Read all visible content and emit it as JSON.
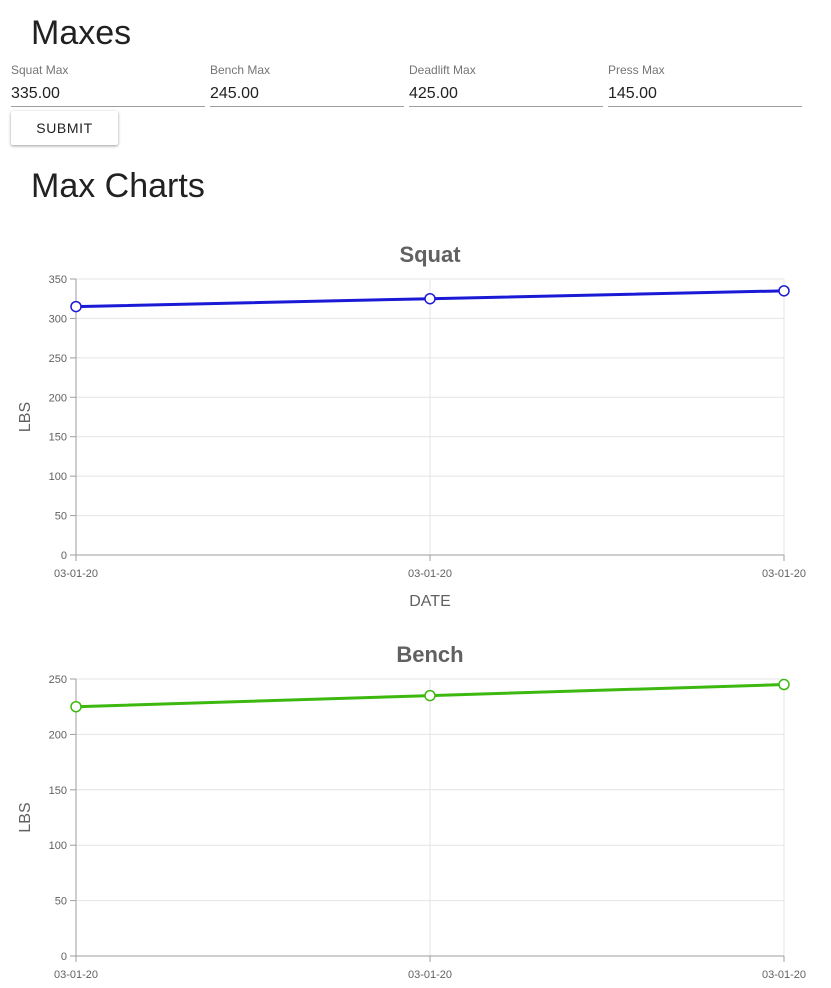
{
  "maxes": {
    "title": "Maxes",
    "fields": [
      {
        "label": "Squat Max",
        "value": "335.00"
      },
      {
        "label": "Bench Max",
        "value": "245.00"
      },
      {
        "label": "Deadlift Max",
        "value": "425.00"
      },
      {
        "label": "Press Max",
        "value": "145.00"
      }
    ],
    "submit_label": "SUBMIT"
  },
  "charts": {
    "title": "Max Charts"
  },
  "chart_data": [
    {
      "type": "line",
      "title": "Squat",
      "xlabel": "DATE",
      "ylabel": "LBS",
      "categories": [
        "03-01-20",
        "03-01-20",
        "03-01-20"
      ],
      "series": [
        {
          "values": [
            315,
            325,
            335
          ],
          "color": "#1a1ad6"
        }
      ],
      "ylim": [
        0,
        350
      ],
      "yticks": [
        0,
        50,
        100,
        150,
        200,
        250,
        300,
        350
      ],
      "grid": true
    },
    {
      "type": "line",
      "title": "Bench",
      "xlabel": "",
      "ylabel": "LBS",
      "categories": [
        "03-01-20",
        "03-01-20",
        "03-01-20"
      ],
      "series": [
        {
          "values": [
            225,
            235,
            245
          ],
          "color": "#3cb80f"
        }
      ],
      "ylim": [
        0,
        250
      ],
      "yticks": [
        0,
        50,
        100,
        150,
        200,
        250
      ],
      "grid": true
    }
  ]
}
